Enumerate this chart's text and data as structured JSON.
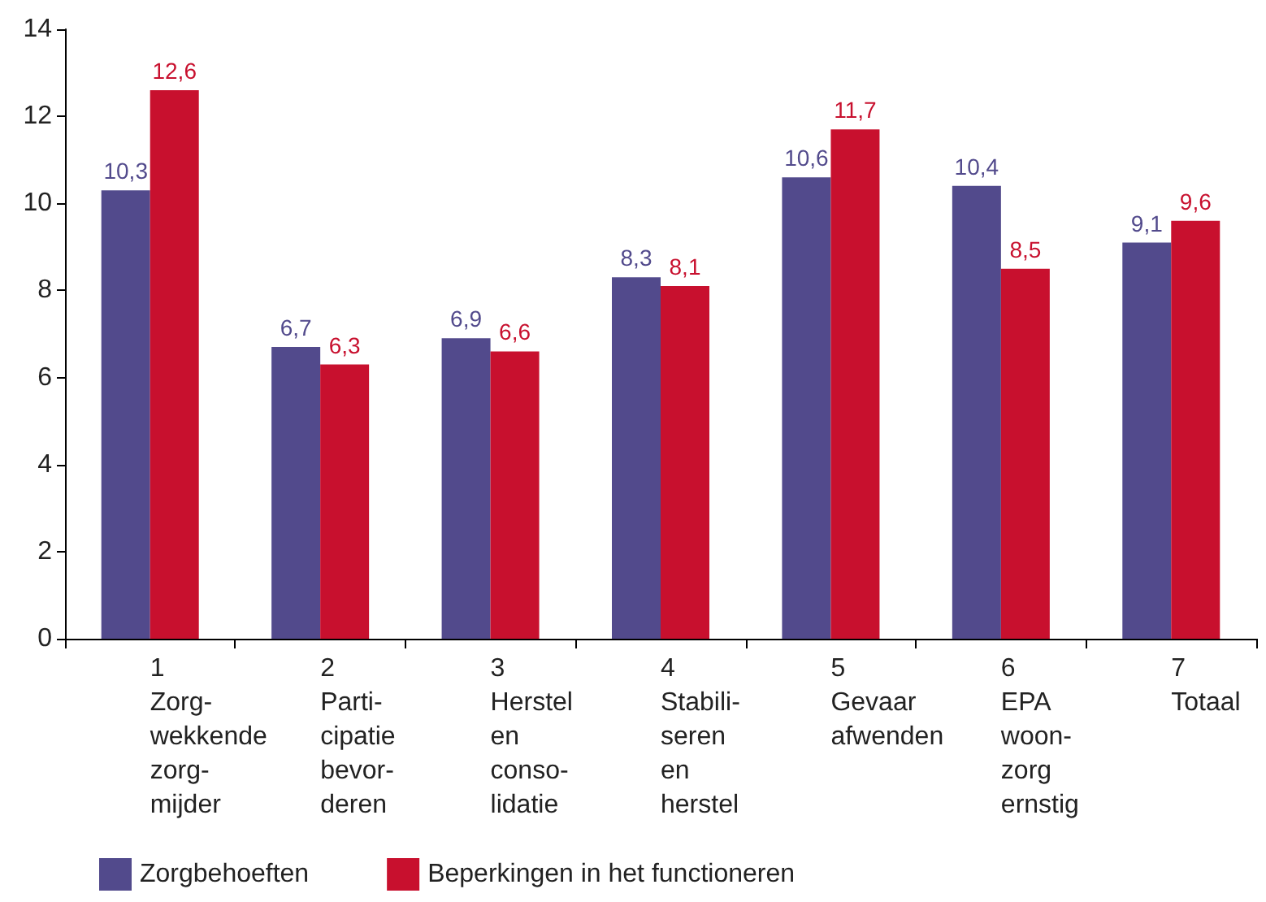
{
  "chart_data": {
    "type": "bar",
    "categories": [
      "1\nZorg-\nwekkende\nzorg-\nmijder",
      "2\nParti-\ncipatie\nbevor-\nderen",
      "3\nHerstel\nen\nconso-\nlidatie",
      "4\nStabili-\nseren\nen\nherstel",
      "5\nGevaar\nafwenden",
      "6\nEPA\nwoon-\nzorg\nernstig",
      "7\nTotaal"
    ],
    "series": [
      {
        "name": "Zorgbehoeften",
        "color": "#524a8c",
        "values": [
          10.3,
          6.7,
          6.9,
          8.3,
          10.6,
          10.4,
          9.1
        ],
        "value_labels": [
          "10,3",
          "6,7",
          "6,9",
          "8,3",
          "10,6",
          "10,4",
          "9,1"
        ]
      },
      {
        "name": "Beperkingen in het functioneren",
        "color": "#c8102e",
        "values": [
          12.6,
          6.3,
          6.6,
          8.1,
          11.7,
          8.5,
          9.6
        ],
        "value_labels": [
          "12,6",
          "6,3",
          "6,6",
          "8,1",
          "11,7",
          "8,5",
          "9,6"
        ]
      }
    ],
    "ylim": [
      0,
      14
    ],
    "yticks": [
      0,
      2,
      4,
      6,
      8,
      10,
      12,
      14
    ],
    "grid": false,
    "legend": "bottom left"
  }
}
